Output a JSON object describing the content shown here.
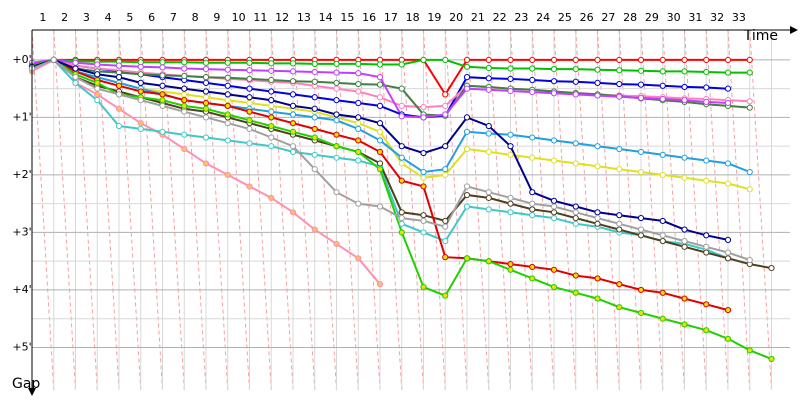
{
  "chart_data": {
    "type": "line",
    "x_label": "Time",
    "y_label": "Gap",
    "x": [
      0,
      1,
      2,
      3,
      4,
      5,
      6,
      7,
      8,
      9,
      10,
      11,
      12,
      13,
      14,
      15,
      16,
      17,
      18,
      19,
      20,
      21,
      22,
      23,
      24,
      25,
      26,
      27,
      28,
      29,
      30,
      31,
      32,
      33,
      34
    ],
    "xlim": [
      0,
      34.85
    ],
    "ylim": [
      -0.52,
      5.74
    ],
    "y_inverted": true,
    "grid": true,
    "xticks": [
      {
        "value": 0.5,
        "label": "1"
      },
      {
        "value": 1.5,
        "label": "2"
      },
      {
        "value": 2.5,
        "label": "3"
      },
      {
        "value": 3.5,
        "label": "4"
      },
      {
        "value": 4.5,
        "label": "5"
      },
      {
        "value": 5.5,
        "label": "6"
      },
      {
        "value": 6.5,
        "label": "7"
      },
      {
        "value": 7.5,
        "label": "8"
      },
      {
        "value": 8.5,
        "label": "9"
      },
      {
        "value": 9.5,
        "label": "10"
      },
      {
        "value": 10.5,
        "label": "11"
      },
      {
        "value": 11.5,
        "label": "12"
      },
      {
        "value": 12.5,
        "label": "13"
      },
      {
        "value": 13.5,
        "label": "14"
      },
      {
        "value": 14.5,
        "label": "15"
      },
      {
        "value": 15.5,
        "label": "16"
      },
      {
        "value": 16.5,
        "label": "17"
      },
      {
        "value": 17.5,
        "label": "18"
      },
      {
        "value": 18.5,
        "label": "19"
      },
      {
        "value": 19.5,
        "label": "20"
      },
      {
        "value": 20.5,
        "label": "21"
      },
      {
        "value": 21.5,
        "label": "22"
      },
      {
        "value": 22.5,
        "label": "23"
      },
      {
        "value": 23.5,
        "label": "24"
      },
      {
        "value": 24.5,
        "label": "25"
      },
      {
        "value": 25.5,
        "label": "26"
      },
      {
        "value": 26.5,
        "label": "27"
      },
      {
        "value": 27.5,
        "label": "28"
      },
      {
        "value": 28.5,
        "label": "29"
      },
      {
        "value": 29.5,
        "label": "30"
      },
      {
        "value": 30.5,
        "label": "31"
      },
      {
        "value": 31.5,
        "label": "32"
      },
      {
        "value": 32.5,
        "label": "33"
      }
    ],
    "yticks": [
      {
        "value": 0,
        "label": "+0'"
      },
      {
        "value": 1,
        "label": "+1'"
      },
      {
        "value": 2,
        "label": "+2'"
      },
      {
        "value": 3,
        "label": "+3'"
      },
      {
        "value": 4,
        "label": "+4'"
      },
      {
        "value": 5,
        "label": "+5'"
      }
    ],
    "series": [
      {
        "color": "#ff0000",
        "marker_fill": "#ffffff",
        "values": [
          0.1,
          0,
          0,
          0,
          0,
          0,
          0,
          0,
          0,
          0,
          0,
          0,
          0,
          0,
          0,
          0,
          0,
          0,
          0,
          0.6,
          0,
          0,
          0,
          0,
          0,
          0,
          0,
          0,
          0,
          0,
          0,
          0,
          0,
          0,
          null
        ]
      },
      {
        "color": "#00c000",
        "marker_fill": "#ffffff",
        "values": [
          0.08,
          0,
          0.02,
          0.03,
          0.03,
          0.04,
          0.04,
          0.04,
          0.05,
          0.05,
          0.05,
          0.06,
          0.06,
          0.07,
          0.07,
          0.07,
          0.08,
          0.08,
          0,
          0,
          0.12,
          0.14,
          0.15,
          0.15,
          0.16,
          0.16,
          0.17,
          0.18,
          0.19,
          0.2,
          0.2,
          0.21,
          0.22,
          0.22,
          null
        ]
      },
      {
        "color": "#0000e0",
        "marker_fill": "#ffffff",
        "values": [
          0.12,
          0,
          0.1,
          0.15,
          0.2,
          0.25,
          0.3,
          0.35,
          0.4,
          0.45,
          0.5,
          0.55,
          0.6,
          0.65,
          0.7,
          0.75,
          0.8,
          0.95,
          1.0,
          0.97,
          0.3,
          0.32,
          0.33,
          0.35,
          0.37,
          0.38,
          0.4,
          0.42,
          0.43,
          0.45,
          0.47,
          0.48,
          0.5,
          null,
          null
        ]
      },
      {
        "color": "#ff80c0",
        "marker_fill": "#ffffff",
        "values": [
          0.15,
          0,
          0.1,
          0.15,
          0.18,
          0.22,
          0.25,
          0.28,
          0.3,
          0.33,
          0.35,
          0.38,
          0.4,
          0.45,
          0.5,
          0.55,
          0.65,
          0.8,
          0.82,
          0.8,
          0.45,
          0.48,
          0.5,
          0.52,
          0.55,
          0.57,
          0.6,
          0.62,
          0.63,
          0.65,
          0.67,
          0.68,
          0.7,
          0.72,
          null
        ]
      },
      {
        "color": "#408040",
        "marker_fill": "#ffffff",
        "values": [
          0.1,
          0,
          0.15,
          0.2,
          0.22,
          0.25,
          0.27,
          0.28,
          0.3,
          0.31,
          0.33,
          0.35,
          0.37,
          0.38,
          0.4,
          0.42,
          0.43,
          0.5,
          0.95,
          0.97,
          0.45,
          0.47,
          0.5,
          0.52,
          0.55,
          0.58,
          0.6,
          0.63,
          0.67,
          0.7,
          0.73,
          0.77,
          0.8,
          0.83,
          null
        ]
      },
      {
        "color": "#c040ff",
        "marker_fill": "#ffffff",
        "values": [
          0.05,
          0,
          0.05,
          0.08,
          0.1,
          0.12,
          0.13,
          0.15,
          0.16,
          0.17,
          0.18,
          0.19,
          0.2,
          0.21,
          0.22,
          0.23,
          0.3,
          0.98,
          1.0,
          0.95,
          0.5,
          0.52,
          0.54,
          0.56,
          0.58,
          0.6,
          0.62,
          0.64,
          0.66,
          0.68,
          0.7,
          0.73,
          0.75,
          null,
          null
        ]
      },
      {
        "color": "#e0e020",
        "marker_fill": "#ffffff",
        "values": [
          0.1,
          0,
          0.2,
          0.3,
          0.4,
          0.5,
          0.55,
          0.6,
          0.65,
          0.7,
          0.75,
          0.8,
          0.85,
          0.9,
          1.0,
          1.1,
          1.25,
          1.8,
          2.05,
          2.0,
          1.55,
          1.6,
          1.65,
          1.7,
          1.75,
          1.8,
          1.85,
          1.9,
          1.95,
          2.0,
          2.05,
          2.1,
          2.15,
          2.25,
          null
        ]
      },
      {
        "color": "#20a0e0",
        "marker_fill": "#ffffff",
        "values": [
          0.15,
          0,
          0.2,
          0.3,
          0.4,
          0.5,
          0.6,
          0.7,
          0.75,
          0.8,
          0.85,
          0.9,
          0.95,
          1.0,
          1.05,
          1.2,
          1.4,
          1.7,
          1.95,
          1.9,
          1.25,
          1.28,
          1.3,
          1.35,
          1.4,
          1.45,
          1.5,
          1.55,
          1.6,
          1.65,
          1.7,
          1.75,
          1.8,
          1.95,
          null
        ]
      },
      {
        "color": "#ff90b0",
        "marker_fill": "#ffc060",
        "values": [
          0.2,
          0,
          0.4,
          0.6,
          0.85,
          1.1,
          1.3,
          1.55,
          1.8,
          2.0,
          2.2,
          2.4,
          2.65,
          2.95,
          3.2,
          3.45,
          3.9,
          null,
          null,
          null,
          null,
          null,
          null,
          null,
          null,
          null,
          null,
          null,
          null,
          null,
          null,
          null,
          null,
          null,
          null
        ]
      },
      {
        "color": "#40c8c8",
        "marker_fill": "#ffffff",
        "values": [
          0.15,
          0,
          0.4,
          0.7,
          1.15,
          1.2,
          1.25,
          1.3,
          1.35,
          1.4,
          1.45,
          1.5,
          1.6,
          1.65,
          1.7,
          1.75,
          1.85,
          2.85,
          3.0,
          3.15,
          2.55,
          2.6,
          2.65,
          2.7,
          2.75,
          2.85,
          2.9,
          3.0,
          3.05,
          3.15,
          3.2,
          3.3,
          3.45,
          null,
          null
        ]
      },
      {
        "color": "#504020",
        "marker_fill": "#ffffff",
        "values": [
          0.1,
          0,
          0.3,
          0.45,
          0.55,
          0.65,
          0.75,
          0.85,
          0.9,
          1.0,
          1.1,
          1.2,
          1.3,
          1.4,
          1.5,
          1.6,
          1.8,
          2.65,
          2.7,
          2.8,
          2.35,
          2.4,
          2.5,
          2.6,
          2.65,
          2.75,
          2.85,
          2.95,
          3.05,
          3.15,
          3.25,
          3.35,
          3.45,
          3.55,
          3.62
        ]
      },
      {
        "color": "#e00000",
        "marker_fill": "#f0e000",
        "values": [
          0.1,
          0,
          0.2,
          0.35,
          0.45,
          0.55,
          0.6,
          0.7,
          0.75,
          0.8,
          0.9,
          1.0,
          1.1,
          1.2,
          1.3,
          1.4,
          1.6,
          2.1,
          2.2,
          3.43,
          3.45,
          3.5,
          3.55,
          3.6,
          3.65,
          3.75,
          3.8,
          3.9,
          4.0,
          4.05,
          4.15,
          4.25,
          4.35,
          null,
          null
        ]
      },
      {
        "color": "#20d000",
        "marker_fill": "#f0e000",
        "values": [
          0.1,
          0,
          0.25,
          0.4,
          0.6,
          0.65,
          0.7,
          0.8,
          0.85,
          0.95,
          1.05,
          1.15,
          1.25,
          1.35,
          1.5,
          1.6,
          1.9,
          3.0,
          3.95,
          4.1,
          3.45,
          3.5,
          3.65,
          3.8,
          3.95,
          4.05,
          4.15,
          4.3,
          4.4,
          4.5,
          4.6,
          4.7,
          4.85,
          5.05,
          5.2
        ]
      },
      {
        "color": "#000090",
        "marker_fill": "#ffffff",
        "values": [
          0.12,
          0,
          0.15,
          0.25,
          0.3,
          0.4,
          0.45,
          0.5,
          0.55,
          0.6,
          0.65,
          0.7,
          0.8,
          0.85,
          0.95,
          1.0,
          1.1,
          1.5,
          1.62,
          1.5,
          1.0,
          1.15,
          1.5,
          2.3,
          2.45,
          2.55,
          2.65,
          2.7,
          2.75,
          2.8,
          2.95,
          3.05,
          3.13,
          null,
          null
        ]
      },
      {
        "color": "#a0a0a0",
        "marker_fill": "#ffffff",
        "values": [
          0.15,
          0,
          0.3,
          0.5,
          0.6,
          0.7,
          0.8,
          0.9,
          1.0,
          1.1,
          1.2,
          1.35,
          1.5,
          1.9,
          2.3,
          2.5,
          2.55,
          2.75,
          2.8,
          2.9,
          2.2,
          2.3,
          2.4,
          2.5,
          2.55,
          2.65,
          2.75,
          2.85,
          2.95,
          3.05,
          3.15,
          3.25,
          3.35,
          3.48,
          null
        ]
      }
    ]
  }
}
